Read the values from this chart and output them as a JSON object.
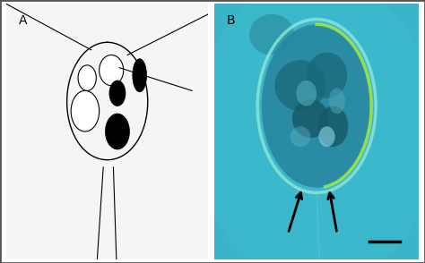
{
  "fig_width": 4.74,
  "fig_height": 2.94,
  "dpi": 100,
  "bg_color": "#ffffff",
  "label_A": "A",
  "label_B": "B",
  "label_fontsize": 10,
  "panel_A_bg": "#f0f0f0",
  "panel_B_bg": "#3ab8cc",
  "cell_body_color": "#38b0c4",
  "cell_edge_color": "#70d8d0",
  "cell_interior_dark": "#1a6070",
  "cell_interior_mid": "#2a8898",
  "arrow_color": "#000000",
  "flagella_color": "#55c8cc"
}
